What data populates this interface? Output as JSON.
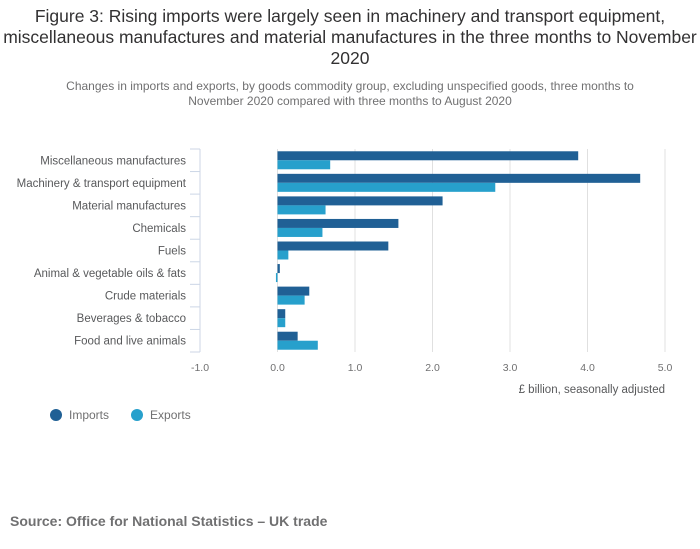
{
  "title": "Figure 3: Rising imports were largely seen in machinery and transport equipment, miscellaneous manufactures and material manufactures in the three months to November 2020",
  "subtitle": "Changes in imports and exports, by goods commodity group, excluding unspecified goods, three months to November 2020 compared with three months to August 2020",
  "source": "Source: Office for National Statistics – UK trade",
  "colors": {
    "imports": "#206095",
    "exports": "#27a0cc"
  },
  "chart_data": {
    "type": "bar",
    "orientation": "horizontal",
    "title": "Figure 3: Rising imports were largely seen in machinery and transport equipment, miscellaneous manufactures and material manufactures in the three months to November 2020",
    "subtitle": "Changes in imports and exports, by goods commodity group, excluding unspecified goods, three months to November 2020 compared with three months to August 2020",
    "categories": [
      "Miscellaneous manufactures",
      "Machinery & transport equipment",
      "Material manufactures",
      "Chemicals",
      "Fuels",
      "Animal & vegetable oils & fats",
      "Crude materials",
      "Beverages & tobacco",
      "Food and live animals"
    ],
    "series": [
      {
        "name": "Imports",
        "values": [
          3.88,
          4.68,
          2.13,
          1.56,
          1.43,
          0.03,
          0.41,
          0.1,
          0.26
        ]
      },
      {
        "name": "Exports",
        "values": [
          0.68,
          2.81,
          0.62,
          0.58,
          0.14,
          -0.02,
          0.35,
          0.1,
          0.52
        ]
      }
    ],
    "xlabel": "£ billion, seasonally adjusted",
    "ylabel": "",
    "xlim": [
      -1.0,
      5.0
    ],
    "xticks": [
      "-1.0",
      "0.0",
      "1.0",
      "2.0",
      "3.0",
      "4.0",
      "5.0"
    ],
    "xtick_values": [
      -1,
      0,
      1,
      2,
      3,
      4,
      5
    ],
    "grid": true,
    "legend": {
      "position": "bottom-left",
      "entries": [
        "Imports",
        "Exports"
      ]
    }
  }
}
